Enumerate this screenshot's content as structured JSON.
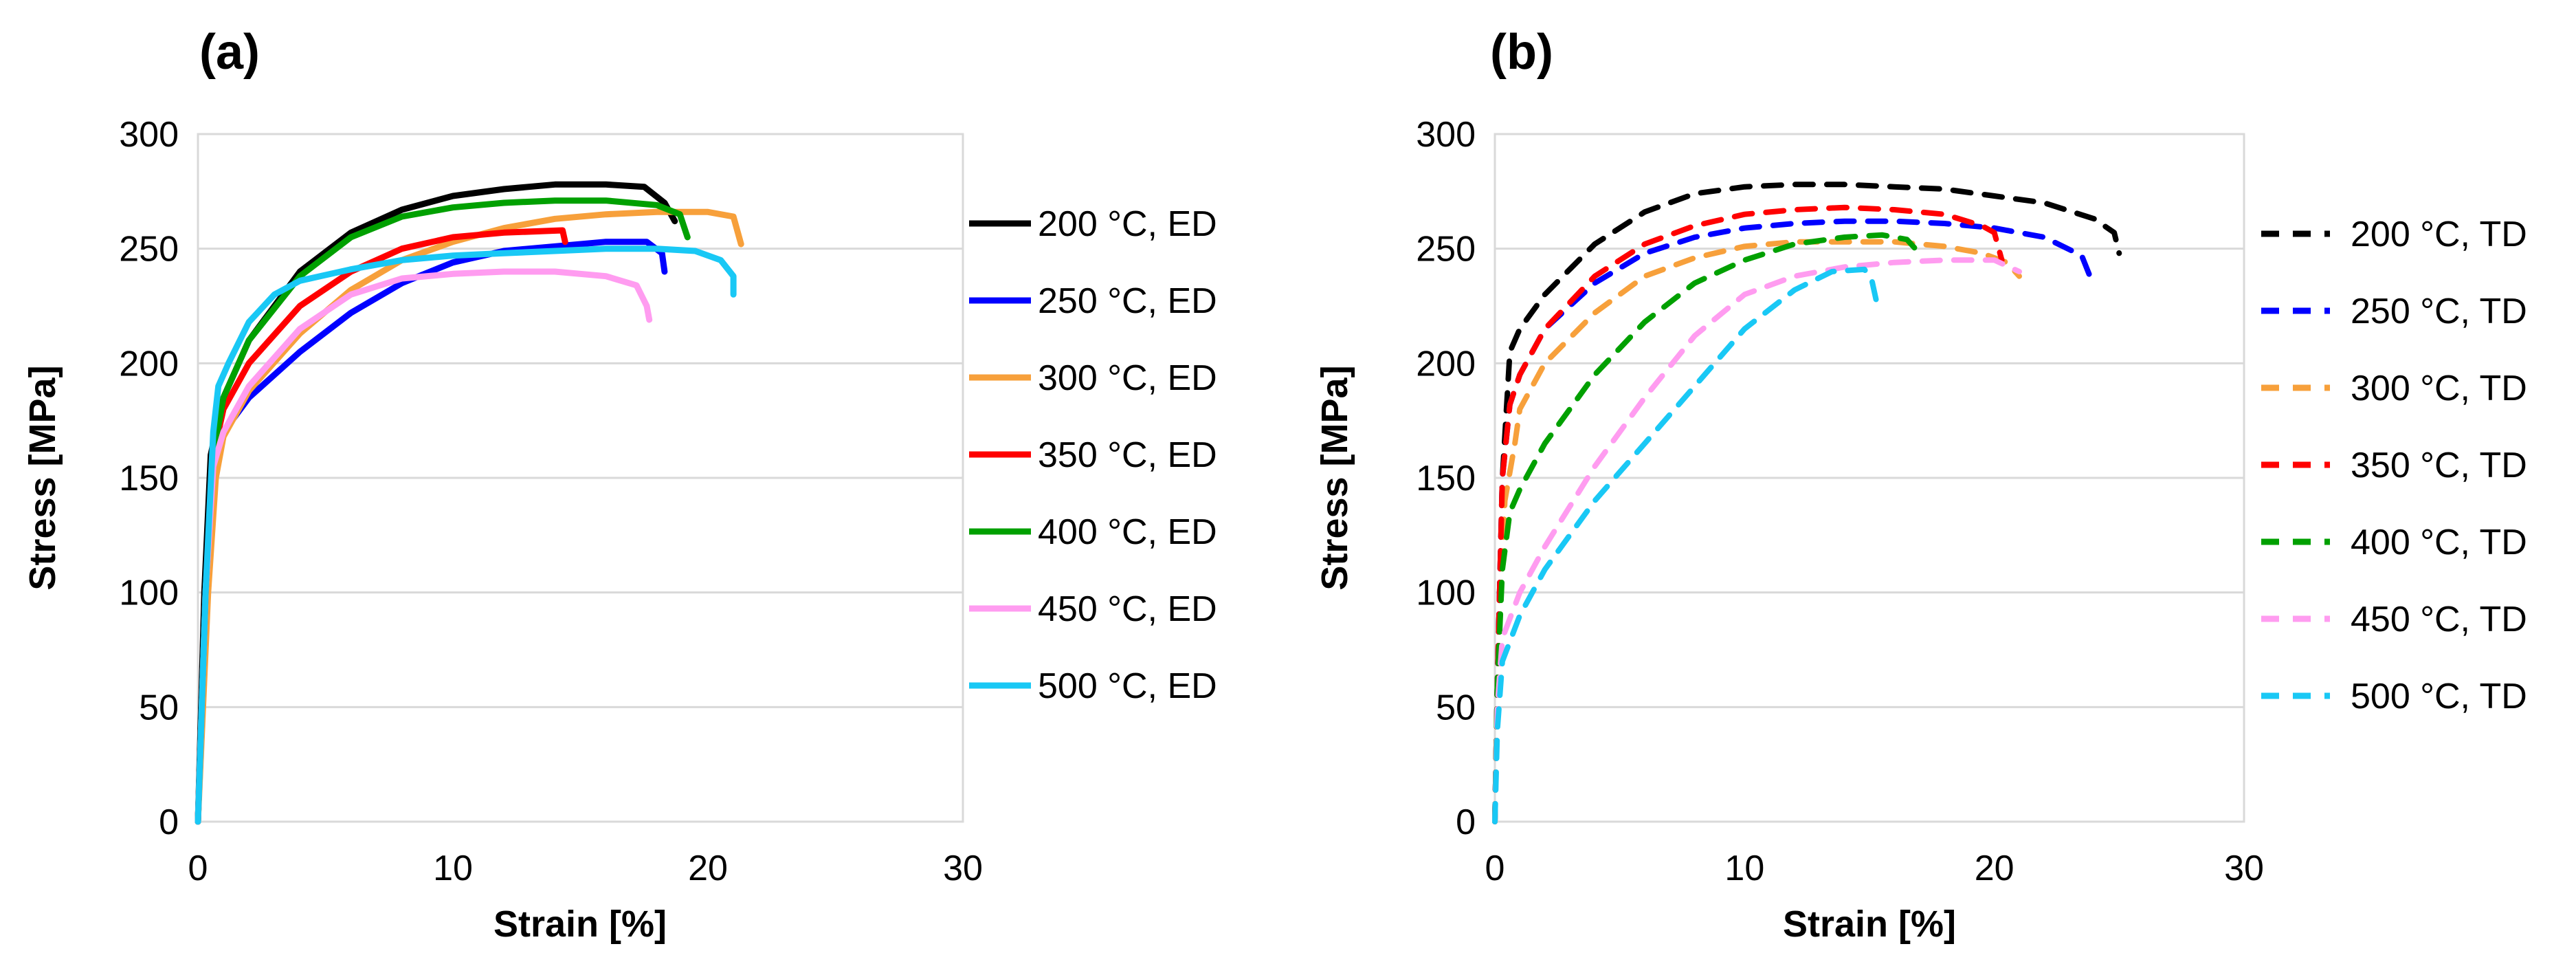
{
  "chart_data": [
    {
      "type": "line",
      "panel_label": "(a)",
      "xlabel": "Strain [%]",
      "ylabel": "Stress [MPa]",
      "xlim": [
        0,
        30
      ],
      "ylim": [
        0,
        300
      ],
      "xticks": [
        0,
        10,
        20,
        30
      ],
      "yticks": [
        0,
        50,
        100,
        150,
        200,
        250,
        300
      ],
      "grid": "horizontal",
      "line_style": "solid",
      "legend_position": "right",
      "series": [
        {
          "name": "200 °C, ED",
          "color": "#000000",
          "points": [
            [
              0,
              0
            ],
            [
              0.25,
              100
            ],
            [
              0.5,
              160
            ],
            [
              1,
              185
            ],
            [
              2,
              210
            ],
            [
              4,
              240
            ],
            [
              6,
              257
            ],
            [
              8,
              267
            ],
            [
              10,
              273
            ],
            [
              12,
              276
            ],
            [
              14,
              278
            ],
            [
              16,
              278
            ],
            [
              17.5,
              277
            ],
            [
              18.3,
              270
            ],
            [
              18.7,
              262
            ]
          ]
        },
        {
          "name": "250 °C, ED",
          "color": "#0000ff",
          "points": [
            [
              0,
              0
            ],
            [
              0.3,
              100
            ],
            [
              0.6,
              158
            ],
            [
              1,
              170
            ],
            [
              2,
              185
            ],
            [
              4,
              205
            ],
            [
              6,
              222
            ],
            [
              8,
              235
            ],
            [
              10,
              244
            ],
            [
              12,
              249
            ],
            [
              14,
              251
            ],
            [
              16,
              253
            ],
            [
              17.6,
              253
            ],
            [
              18.2,
              248
            ],
            [
              18.3,
              240
            ]
          ]
        },
        {
          "name": "300 °C, ED",
          "color": "#f7a03b",
          "points": [
            [
              0,
              0
            ],
            [
              0.4,
              100
            ],
            [
              0.7,
              150
            ],
            [
              1,
              168
            ],
            [
              2,
              188
            ],
            [
              4,
              213
            ],
            [
              6,
              232
            ],
            [
              8,
              245
            ],
            [
              10,
              253
            ],
            [
              12,
              259
            ],
            [
              14,
              263
            ],
            [
              16,
              265
            ],
            [
              18,
              266
            ],
            [
              20,
              266
            ],
            [
              21,
              264
            ],
            [
              21.3,
              252
            ]
          ]
        },
        {
          "name": "350 °C, ED",
          "color": "#ff0000",
          "points": [
            [
              0,
              0
            ],
            [
              0.3,
              100
            ],
            [
              0.6,
              160
            ],
            [
              1,
              180
            ],
            [
              2,
              200
            ],
            [
              4,
              225
            ],
            [
              6,
              240
            ],
            [
              8,
              250
            ],
            [
              10,
              255
            ],
            [
              12,
              257
            ],
            [
              14.3,
              258
            ],
            [
              14.4,
              253
            ]
          ]
        },
        {
          "name": "400 °C, ED",
          "color": "#00a000",
          "points": [
            [
              0,
              0
            ],
            [
              0.3,
              100
            ],
            [
              0.6,
              160
            ],
            [
              1,
              185
            ],
            [
              2,
              210
            ],
            [
              4,
              238
            ],
            [
              6,
              255
            ],
            [
              8,
              264
            ],
            [
              10,
              268
            ],
            [
              12,
              270
            ],
            [
              14,
              271
            ],
            [
              16,
              271
            ],
            [
              18,
              269
            ],
            [
              18.9,
              265
            ],
            [
              19.2,
              255
            ]
          ]
        },
        {
          "name": "450 °C, ED",
          "color": "#ff9cf0",
          "points": [
            [
              0,
              0
            ],
            [
              0.3,
              100
            ],
            [
              0.6,
              155
            ],
            [
              1,
              170
            ],
            [
              2,
              190
            ],
            [
              4,
              215
            ],
            [
              6,
              230
            ],
            [
              8,
              237
            ],
            [
              10,
              239
            ],
            [
              12,
              240
            ],
            [
              14,
              240
            ],
            [
              16,
              238
            ],
            [
              17.2,
              234
            ],
            [
              17.6,
              225
            ],
            [
              17.7,
              219
            ]
          ]
        },
        {
          "name": "500 °C, ED",
          "color": "#19c8f5",
          "points": [
            [
              0,
              0
            ],
            [
              0.3,
              100
            ],
            [
              0.6,
              170
            ],
            [
              0.8,
              190
            ],
            [
              1.2,
              200
            ],
            [
              2,
              218
            ],
            [
              3,
              230
            ],
            [
              4,
              236
            ],
            [
              6,
              241
            ],
            [
              8,
              245
            ],
            [
              10,
              247
            ],
            [
              12,
              248
            ],
            [
              14,
              249
            ],
            [
              16,
              250
            ],
            [
              18,
              250
            ],
            [
              19.5,
              249
            ],
            [
              20.5,
              245
            ],
            [
              21,
              238
            ],
            [
              21,
              230
            ]
          ]
        }
      ]
    },
    {
      "type": "line",
      "panel_label": "(b)",
      "xlabel": "Strain [%]",
      "ylabel": "Stress [MPa]",
      "xlim": [
        0,
        30
      ],
      "ylim": [
        0,
        300
      ],
      "xticks": [
        0,
        10,
        20,
        30
      ],
      "yticks": [
        0,
        50,
        100,
        150,
        200,
        250,
        300
      ],
      "grid": "horizontal",
      "line_style": "dashed",
      "legend_position": "right",
      "series": [
        {
          "name": "200 °C, TD",
          "color": "#000000",
          "points": [
            [
              0,
              0
            ],
            [
              0.1,
              60
            ],
            [
              0.3,
              150
            ],
            [
              0.6,
              205
            ],
            [
              1,
              215
            ],
            [
              2,
              230
            ],
            [
              4,
              252
            ],
            [
              6,
              266
            ],
            [
              8,
              274
            ],
            [
              10,
              277
            ],
            [
              12,
              278
            ],
            [
              14,
              278
            ],
            [
              16,
              277
            ],
            [
              18,
              276
            ],
            [
              20,
              273
            ],
            [
              22,
              270
            ],
            [
              24,
              263
            ],
            [
              24.8,
              257
            ],
            [
              25,
              248
            ]
          ]
        },
        {
          "name": "250 °C, TD",
          "color": "#0000ff",
          "points": [
            [
              0,
              0
            ],
            [
              0.1,
              60
            ],
            [
              0.3,
              150
            ],
            [
              0.6,
              182
            ],
            [
              1,
              195
            ],
            [
              2,
              215
            ],
            [
              4,
              235
            ],
            [
              6,
              248
            ],
            [
              8,
              255
            ],
            [
              10,
              259
            ],
            [
              12,
              261
            ],
            [
              14,
              262
            ],
            [
              16,
              262
            ],
            [
              18,
              261
            ],
            [
              20,
              259
            ],
            [
              22,
              255
            ],
            [
              23.5,
              247
            ],
            [
              23.9,
              236
            ]
          ]
        },
        {
          "name": "300 °C, TD",
          "color": "#f7a03b",
          "points": [
            [
              0,
              0
            ],
            [
              0.1,
              60
            ],
            [
              0.4,
              140
            ],
            [
              0.8,
              165
            ],
            [
              1,
              180
            ],
            [
              2,
              200
            ],
            [
              4,
              222
            ],
            [
              6,
              238
            ],
            [
              8,
              246
            ],
            [
              10,
              251
            ],
            [
              12,
              253
            ],
            [
              14,
              253
            ],
            [
              16,
              253
            ],
            [
              18,
              251
            ],
            [
              19.5,
              248
            ],
            [
              20.5,
              244
            ],
            [
              21,
              238
            ]
          ]
        },
        {
          "name": "350 °C, TD",
          "color": "#ff0000",
          "points": [
            [
              0,
              0
            ],
            [
              0.1,
              60
            ],
            [
              0.3,
              150
            ],
            [
              0.6,
              182
            ],
            [
              1,
              195
            ],
            [
              2,
              215
            ],
            [
              4,
              238
            ],
            [
              6,
              252
            ],
            [
              8,
              260
            ],
            [
              10,
              265
            ],
            [
              12,
              267
            ],
            [
              14,
              268
            ],
            [
              16,
              267
            ],
            [
              18,
              265
            ],
            [
              19.5,
              260
            ],
            [
              20,
              257
            ],
            [
              20.3,
              245
            ]
          ]
        },
        {
          "name": "400 °C, TD",
          "color": "#00a000",
          "points": [
            [
              0,
              0
            ],
            [
              0.1,
              60
            ],
            [
              0.3,
              110
            ],
            [
              0.6,
              135
            ],
            [
              1,
              145
            ],
            [
              2,
              165
            ],
            [
              4,
              195
            ],
            [
              6,
              218
            ],
            [
              8,
              235
            ],
            [
              10,
              245
            ],
            [
              12,
              252
            ],
            [
              14,
              255
            ],
            [
              15.5,
              256
            ],
            [
              16.5,
              254
            ],
            [
              17,
              248
            ]
          ]
        },
        {
          "name": "450 °C, TD",
          "color": "#ff9cf0",
          "points": [
            [
              0,
              0
            ],
            [
              0.1,
              50
            ],
            [
              0.3,
              80
            ],
            [
              1,
              100
            ],
            [
              2,
              120
            ],
            [
              4,
              155
            ],
            [
              6,
              185
            ],
            [
              8,
              212
            ],
            [
              10,
              230
            ],
            [
              12,
              238
            ],
            [
              14,
              242
            ],
            [
              16,
              244
            ],
            [
              18,
              245
            ],
            [
              20,
              245
            ],
            [
              21,
              240
            ]
          ]
        },
        {
          "name": "500 °C, TD",
          "color": "#19c8f5",
          "points": [
            [
              0,
              0
            ],
            [
              0.1,
              40
            ],
            [
              0.3,
              70
            ],
            [
              1,
              90
            ],
            [
              2,
              110
            ],
            [
              4,
              140
            ],
            [
              6,
              165
            ],
            [
              8,
              190
            ],
            [
              10,
              215
            ],
            [
              12,
              232
            ],
            [
              13.5,
              240
            ],
            [
              14.8,
              241
            ],
            [
              15.1,
              236
            ],
            [
              15.3,
              226
            ]
          ]
        }
      ]
    }
  ]
}
